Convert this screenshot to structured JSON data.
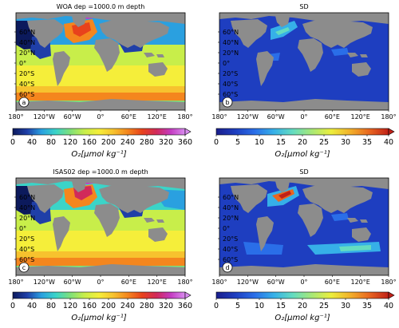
{
  "panels": [
    {
      "id": "a",
      "title": "WOA dep =1000.0 m depth",
      "kind": "mean",
      "letter": "a"
    },
    {
      "id": "b",
      "title": "SD",
      "kind": "sd",
      "letter": "b"
    },
    {
      "id": "c",
      "title": "ISAS02 dep =1000.0 m depth",
      "kind": "mean",
      "letter": "c"
    },
    {
      "id": "d",
      "title": "SD",
      "kind": "sd",
      "letter": "d"
    }
  ],
  "lat_labels": [
    "60°N",
    "40°N",
    "20°N",
    "0°",
    "20°S",
    "40°S",
    "60°S"
  ],
  "lon_labels": [
    "180°",
    "120°W",
    "60°W",
    "0°",
    "60°E",
    "120°E",
    "180°"
  ],
  "colorbars": {
    "mean": {
      "ticks": [
        "0",
        "40",
        "80",
        "120",
        "160",
        "200",
        "240",
        "280",
        "320",
        "360"
      ],
      "label": "O₂[μmol kg⁻¹]",
      "colors": [
        "#0c1a5c",
        "#1f3fa8",
        "#2aa0e0",
        "#3bd4c8",
        "#7fe07a",
        "#c8ee4a",
        "#f5ee3a",
        "#f7c22e",
        "#f4861e",
        "#e8421c",
        "#d12a5a",
        "#c43cc2",
        "#d98cf0"
      ]
    },
    "sd": {
      "ticks": [
        "0",
        "5",
        "10",
        "15",
        "20",
        "25",
        "30",
        "35",
        "40"
      ],
      "label": "O₂[μmol kg⁻¹]",
      "colors": [
        "#1a1e8c",
        "#1e3ec0",
        "#2a6ee8",
        "#36b0e8",
        "#64dcc0",
        "#a8e876",
        "#ecee3c",
        "#f2b02a",
        "#e86620",
        "#c02018"
      ]
    }
  },
  "colors": {
    "land": "#8c8c8c",
    "frame": "#000000"
  }
}
